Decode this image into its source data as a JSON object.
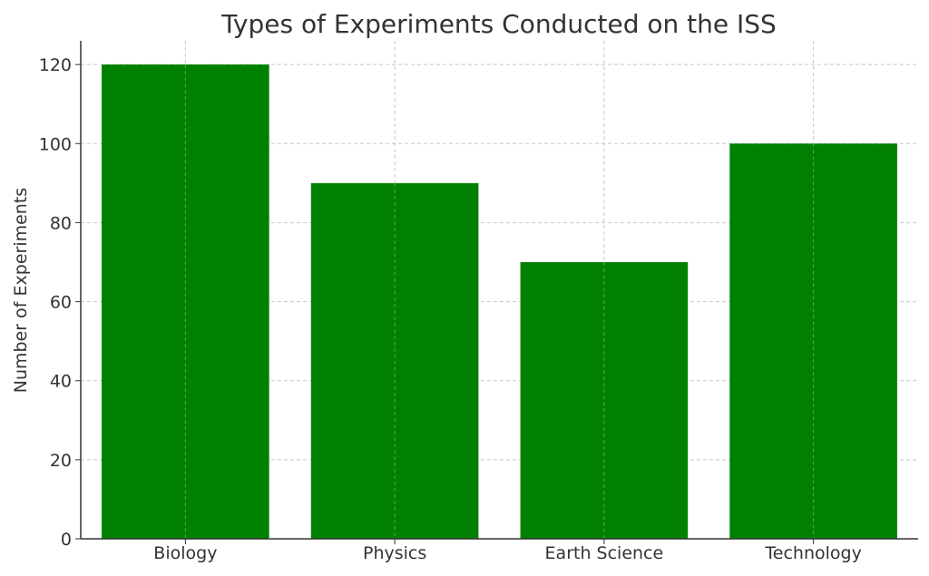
{
  "chart_data": {
    "type": "bar",
    "title": "Types of Experiments Conducted on the ISS",
    "xlabel": "",
    "ylabel": "Number of Experiments",
    "categories": [
      "Biology",
      "Physics",
      "Earth Science",
      "Technology"
    ],
    "values": [
      120,
      90,
      70,
      100
    ],
    "ylim": [
      0,
      126
    ],
    "yticks": [
      0,
      20,
      40,
      60,
      80,
      100,
      120
    ],
    "grid": true,
    "legend": "none",
    "colors": {
      "bar": "#008000",
      "grid": "#c8c8c8",
      "axis": "#333333",
      "text": "#333333"
    }
  }
}
